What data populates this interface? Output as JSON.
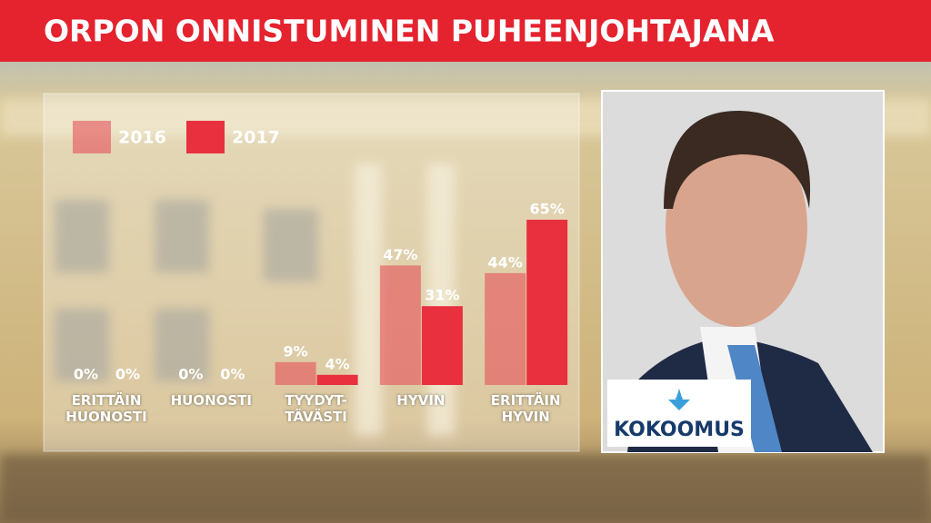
{
  "chart_data": {
    "type": "bar",
    "title": "ORPON ONNISTUMINEN PUHEENJOHTAJANA",
    "categories": [
      "ERITTÄIN\nHUONOSTI",
      "HUONOSTI",
      "TYYDYT-\nTÄVÄSTI",
      "HYVIN",
      "ERITTÄIN\nHYVIN"
    ],
    "series": [
      {
        "name": "2016",
        "color": "rgba(230,70,82,0.55)",
        "values": [
          0,
          0,
          9,
          47,
          44
        ],
        "value_labels": [
          "0%",
          "0%",
          "9%",
          "47%",
          "44%"
        ]
      },
      {
        "name": "2017",
        "color": "#e8303f",
        "values": [
          0,
          0,
          4,
          31,
          65
        ],
        "value_labels": [
          "0%",
          "0%",
          "4%",
          "31%",
          "65%"
        ]
      }
    ]
  },
  "logo_text": "KOKOOMUS"
}
